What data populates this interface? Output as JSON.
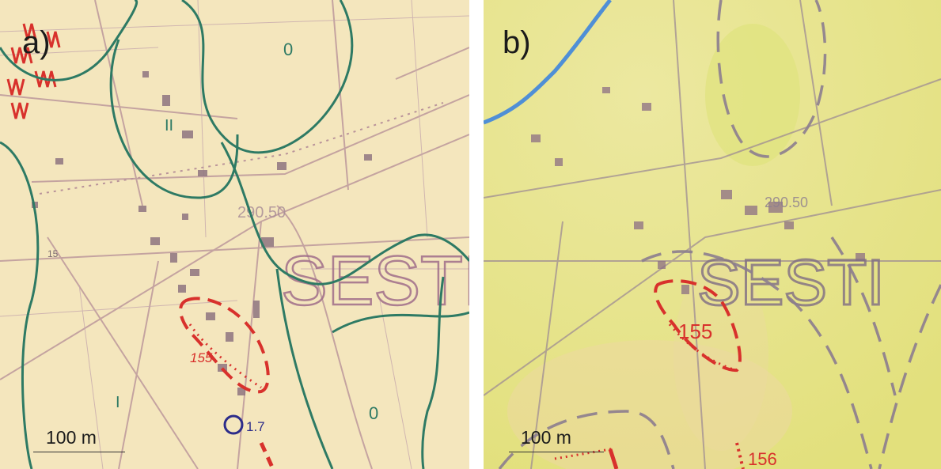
{
  "panels": [
    {
      "label": "a)",
      "scale_text": "100 m",
      "place_name": "SESTI",
      "elevation_label": "290.50",
      "zone_labels": [
        "0",
        "II",
        "0",
        "I"
      ],
      "site_labels": [
        "155"
      ],
      "spring_label": "1.7",
      "road_label": "15",
      "colors": {
        "base": "#f4e6bd",
        "contour": "#2e7a64",
        "hazard": "#d8312c",
        "roads": "#b9939a",
        "spring": "#2c2c8a"
      }
    },
    {
      "label": "b)",
      "scale_text": "100 m",
      "place_name": "SESTI",
      "elevation_label": "290.50",
      "site_labels": [
        "155",
        "156"
      ],
      "colors": {
        "base": "#e8e68c",
        "boundary": "#8c7d8f",
        "hazard": "#d8312c",
        "river": "#4f8fd6"
      }
    }
  ]
}
